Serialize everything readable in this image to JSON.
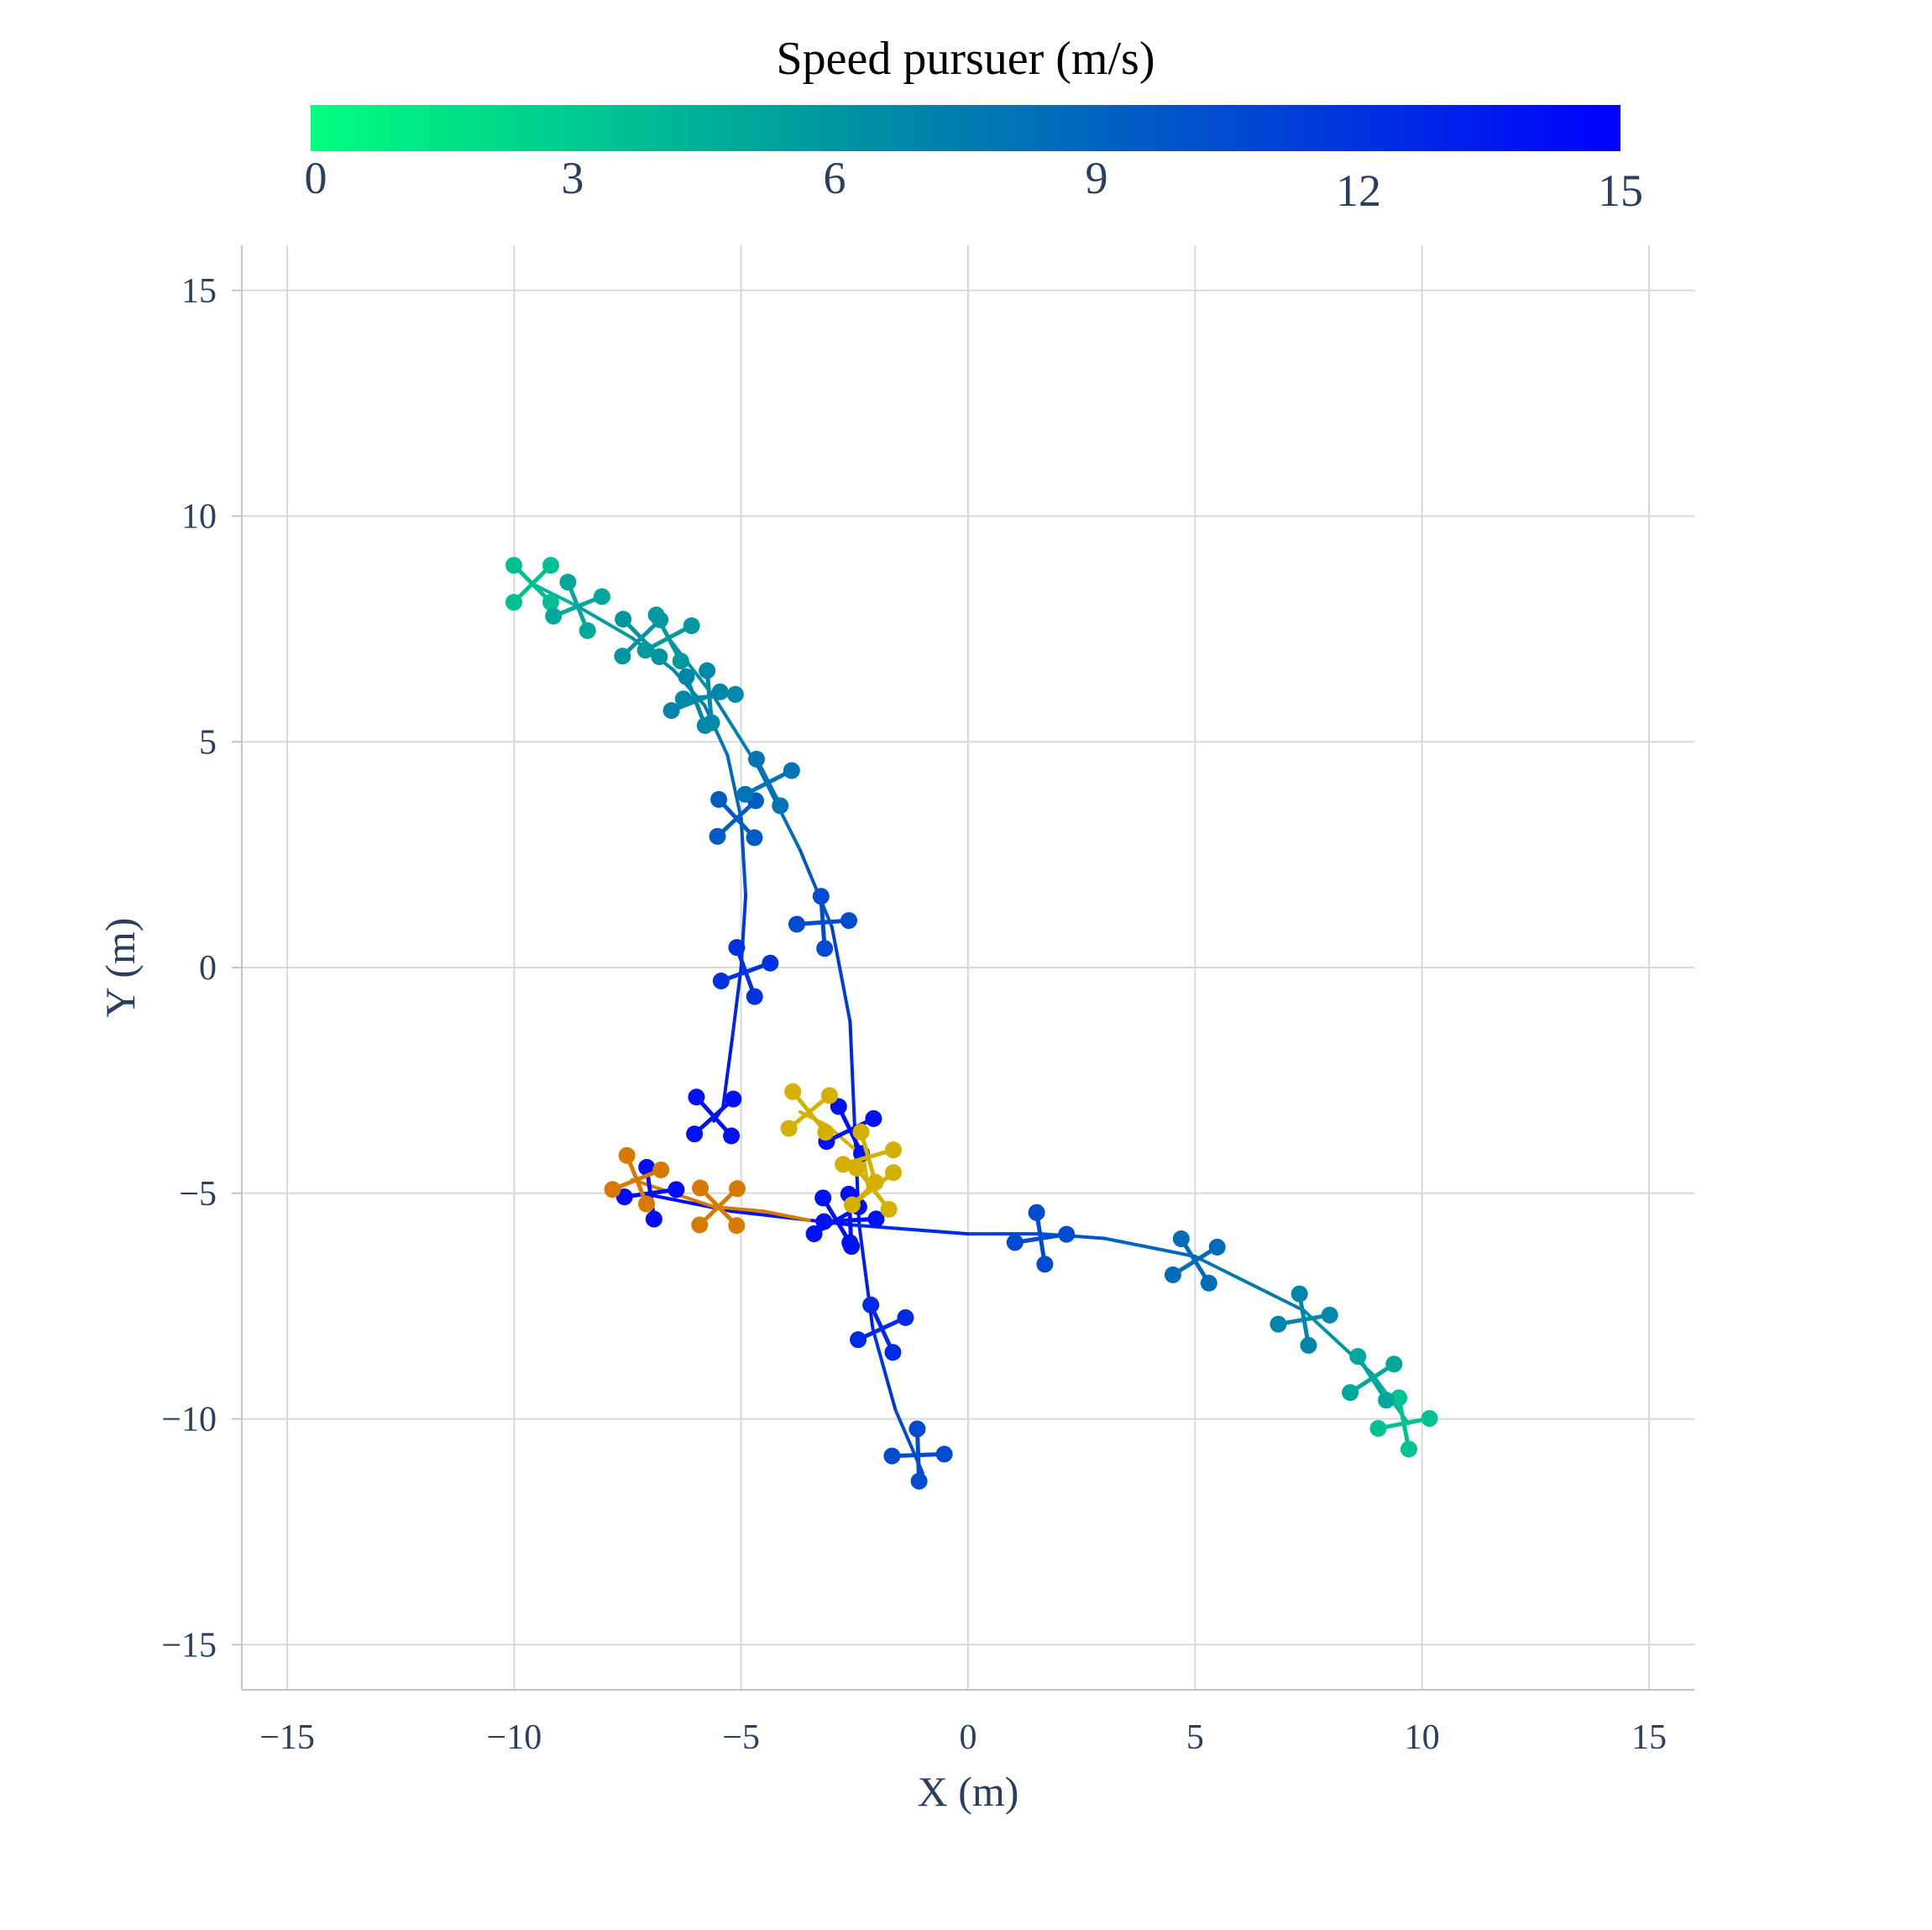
{
  "colorbar": {
    "title": "Speed pursuer (m/s)",
    "min": 0,
    "max": 15,
    "ticks": [
      0,
      3,
      6,
      9,
      12,
      15
    ],
    "tick_labels": [
      "0",
      "3",
      "6",
      "9",
      "12",
      "15"
    ],
    "color_low": "#00ff7f",
    "color_mid": "#0096a0",
    "color_high": "#0000ff"
  },
  "chart_data": {
    "type": "line",
    "title": "",
    "xlabel": "X (m)",
    "ylabel": "Y (m)",
    "xlim": [
      -16,
      16
    ],
    "ylim": [
      -16,
      16
    ],
    "x_ticks": [
      -15,
      -10,
      -5,
      0,
      5,
      10,
      15
    ],
    "y_ticks": [
      -15,
      -10,
      -5,
      0,
      5,
      10,
      15
    ],
    "x_tick_labels": [
      "−15",
      "−10",
      "−5",
      "0",
      "5",
      "10",
      "15"
    ],
    "y_tick_labels": [
      "−15",
      "−10",
      "−5",
      "0",
      "5",
      "10",
      "15"
    ],
    "grid": true,
    "legend": "none",
    "colorbar_placement": "top",
    "series": [
      {
        "role": "pursuer",
        "x": [
          -9.6,
          -8.6,
          -7.4,
          -6.5,
          -5.8,
          -5.3,
          -5.0,
          -4.9,
          -5.0,
          -5.2,
          -5.4,
          -5.6
        ],
        "y": [
          8.5,
          8.0,
          7.3,
          6.6,
          5.8,
          4.7,
          3.3,
          1.6,
          0.0,
          -1.6,
          -3.1,
          -3.4
        ],
        "speed": [
          3.6,
          5.0,
          6.2,
          6.8,
          7.3,
          8.2,
          9.5,
          11.0,
          12.2,
          13.2,
          13.8,
          14.0
        ],
        "markers": [
          {
            "x": -9.6,
            "y": 8.5,
            "speed": 3.6
          },
          {
            "x": -8.6,
            "y": 8.0,
            "speed": 5.0
          },
          {
            "x": -7.2,
            "y": 7.3,
            "speed": 6.0
          },
          {
            "x": -6.0,
            "y": 5.9,
            "speed": 7.0
          },
          {
            "x": -5.1,
            "y": 3.3,
            "speed": 9.5
          },
          {
            "x": -4.9,
            "y": -0.1,
            "speed": 12.0
          },
          {
            "x": -5.6,
            "y": -3.3,
            "speed": 14.0
          }
        ]
      },
      {
        "role": "pursuer",
        "x": [
          -6.6,
          -5.6,
          -4.6,
          -3.7,
          -3.0,
          -2.6,
          -2.5,
          -2.4,
          -2.1,
          -1.6,
          -1.0
        ],
        "y": [
          7.3,
          6.0,
          4.4,
          2.6,
          0.9,
          -1.2,
          -3.5,
          -5.7,
          -8.0,
          -9.8,
          -11.2
        ],
        "speed": [
          5.8,
          6.8,
          7.8,
          9.0,
          10.5,
          12.0,
          13.5,
          14.0,
          12.5,
          11.0,
          10.0
        ],
        "markers": [
          {
            "x": -6.6,
            "y": 7.3,
            "speed": 5.8
          },
          {
            "x": -5.7,
            "y": 6.0,
            "speed": 6.8
          },
          {
            "x": -4.4,
            "y": 4.1,
            "speed": 8.0
          },
          {
            "x": -3.2,
            "y": 1.0,
            "speed": 10.5
          },
          {
            "x": -2.6,
            "y": -3.6,
            "speed": 14.0
          },
          {
            "x": -2.6,
            "y": -5.6,
            "speed": 14.0
          },
          {
            "x": -1.9,
            "y": -8.0,
            "speed": 12.5
          },
          {
            "x": -1.1,
            "y": -10.8,
            "speed": 10.5
          }
        ]
      },
      {
        "role": "pursuer",
        "x": [
          9.7,
          8.9,
          7.4,
          5.0,
          3.0,
          1.6,
          0.0,
          -2.6,
          -5.2,
          -7.2
        ],
        "y": [
          -10.1,
          -9.0,
          -7.6,
          -6.4,
          -6.0,
          -5.9,
          -5.9,
          -5.7,
          -5.4,
          -5.0
        ],
        "speed": [
          3.5,
          5.0,
          7.0,
          8.5,
          9.5,
          10.5,
          11.5,
          13.5,
          14.0,
          14.3
        ],
        "markers": [
          {
            "x": 9.6,
            "y": -10.1,
            "speed": 3.5
          },
          {
            "x": 8.9,
            "y": -9.1,
            "speed": 5.0
          },
          {
            "x": 7.4,
            "y": -7.8,
            "speed": 7.0
          },
          {
            "x": 5.0,
            "y": -6.5,
            "speed": 8.5
          },
          {
            "x": 1.6,
            "y": -6.0,
            "speed": 10.5
          },
          {
            "x": -2.9,
            "y": -5.6,
            "speed": 14.0
          },
          {
            "x": -7.0,
            "y": -5.0,
            "speed": 14.3
          }
        ]
      },
      {
        "role": "evader",
        "color": "#d4b000",
        "x": [
          -3.7,
          -3.1,
          -2.3,
          -2.2,
          -2.5
        ],
        "y": [
          -3.2,
          -3.5,
          -4.2,
          -4.9,
          -5.2
        ],
        "markers": [
          {
            "x": -3.5,
            "y": -3.2
          },
          {
            "x": -2.2,
            "y": -4.2
          },
          {
            "x": -2.1,
            "y": -4.9
          }
        ]
      },
      {
        "role": "evader",
        "color": "#d97a00",
        "x": [
          -7.4,
          -6.5,
          -5.6,
          -4.5,
          -3.5
        ],
        "y": [
          -4.7,
          -5.0,
          -5.3,
          -5.4,
          -5.6
        ],
        "markers": [
          {
            "x": -7.3,
            "y": -4.7
          },
          {
            "x": -5.5,
            "y": -5.3
          }
        ]
      }
    ]
  }
}
